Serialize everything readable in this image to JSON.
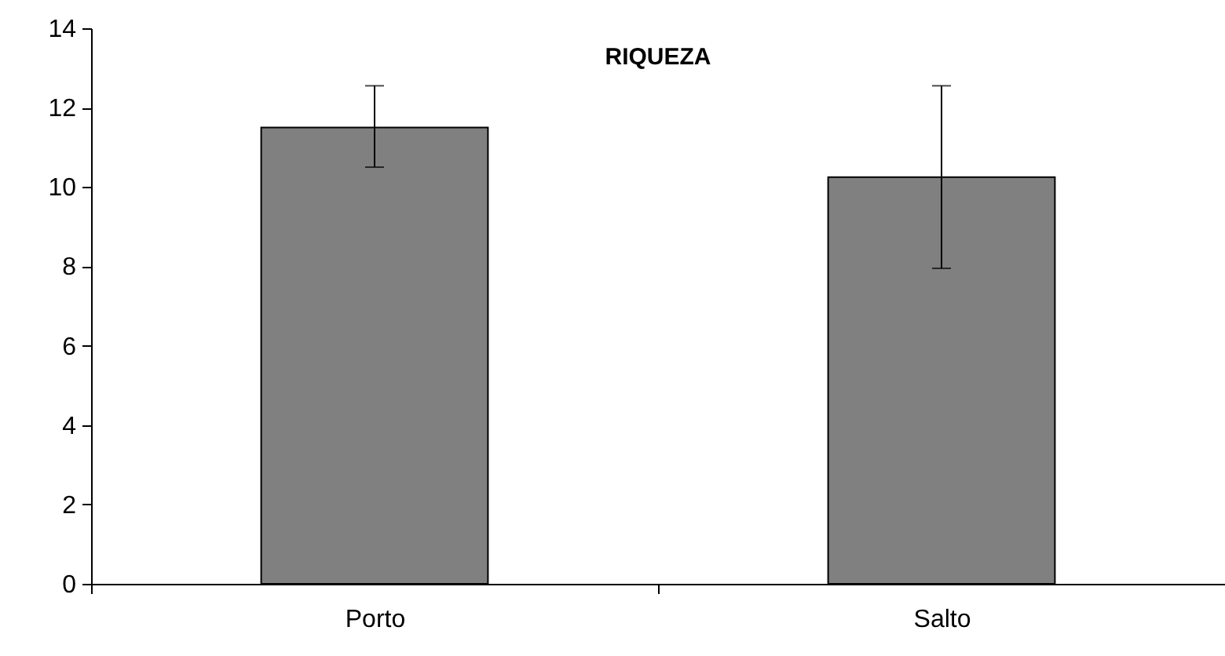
{
  "chart_data": {
    "type": "bar",
    "title": "RIQUEZA",
    "categories": [
      "Porto",
      "Salto"
    ],
    "values": [
      11.5,
      10.25
    ],
    "errors": [
      [
        10.5,
        12.55
      ],
      [
        7.95,
        12.55
      ]
    ],
    "color": "#808080",
    "ylim": [
      0,
      14
    ],
    "yticks": [
      0,
      2,
      4,
      6,
      8,
      10,
      12,
      14
    ],
    "grid": false
  }
}
